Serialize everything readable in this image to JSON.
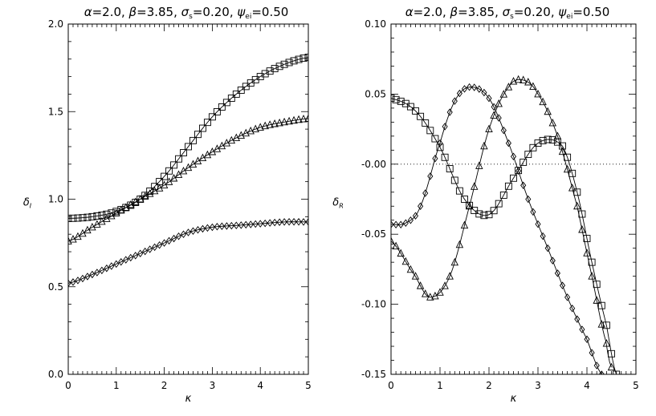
{
  "chart_data": [
    {
      "type": "line",
      "title_parts": [
        {
          "sym": "α",
          "sub": "",
          "rest": "=2.0,  "
        },
        {
          "sym": "β",
          "sub": "",
          "rest": "=3.85,  "
        },
        {
          "sym": "σ",
          "sub": "s",
          "rest": "=0.20,  "
        },
        {
          "sym": "ψ",
          "sub": "ei",
          "rest": "=0.50"
        }
      ],
      "xlabel": "κ",
      "ylabel": "δ",
      "ylabel_sub": "I",
      "xlim": [
        0,
        5
      ],
      "ylim": [
        0,
        2
      ],
      "xticks": [
        0,
        1,
        2,
        3,
        4,
        5
      ],
      "xtick_labels": [
        "0",
        "1",
        "2",
        "3",
        "4",
        "5"
      ],
      "yticks": [
        0,
        0.5,
        1,
        1.5,
        2
      ],
      "ytick_labels": [
        "0.0",
        "0.5",
        "1.0",
        "1.5",
        "2.0"
      ],
      "grid": false,
      "series": [
        {
          "marker": "square",
          "x": [
            0,
            0.5,
            1,
            1.5,
            2,
            2.5,
            3,
            3.5,
            4,
            4.5,
            5
          ],
          "y": [
            0.89,
            0.9,
            0.93,
            1.0,
            1.13,
            1.3,
            1.47,
            1.6,
            1.7,
            1.77,
            1.81
          ]
        },
        {
          "marker": "triangle",
          "x": [
            0,
            0.5,
            1,
            1.5,
            2,
            2.5,
            3,
            3.5,
            4,
            4.5,
            5
          ],
          "y": [
            0.76,
            0.84,
            0.92,
            1.0,
            1.08,
            1.18,
            1.27,
            1.35,
            1.41,
            1.44,
            1.46
          ]
        },
        {
          "marker": "diamond",
          "x": [
            0,
            0.5,
            1,
            1.5,
            2,
            2.5,
            3,
            3.5,
            4,
            4.5,
            5
          ],
          "y": [
            0.52,
            0.57,
            0.63,
            0.69,
            0.75,
            0.81,
            0.84,
            0.85,
            0.86,
            0.87,
            0.87
          ]
        }
      ]
    },
    {
      "type": "line",
      "title_parts": [
        {
          "sym": "α",
          "sub": "",
          "rest": "=2.0,  "
        },
        {
          "sym": "β",
          "sub": "",
          "rest": "=3.85,  "
        },
        {
          "sym": "σ",
          "sub": "s",
          "rest": "=0.20,  "
        },
        {
          "sym": "ψ",
          "sub": "ei",
          "rest": "=0.50"
        }
      ],
      "xlabel": "κ",
      "ylabel": "δ",
      "ylabel_sub": "R",
      "xlim": [
        0,
        5
      ],
      "ylim": [
        -0.15,
        0.1
      ],
      "xticks": [
        0,
        1,
        2,
        3,
        4,
        5
      ],
      "xtick_labels": [
        "0",
        "1",
        "2",
        "3",
        "4",
        "5"
      ],
      "yticks": [
        -0.15,
        -0.1,
        -0.05,
        0,
        0.05,
        0.1
      ],
      "ytick_labels": [
        "-0.15",
        "-0.10",
        "-0.05",
        "-0.00",
        "0.05",
        "0.10"
      ],
      "reference_line": {
        "y": 0,
        "style": "dotted"
      },
      "grid": false,
      "series": [
        {
          "marker": "square",
          "x": [
            0,
            0.5,
            1,
            1.5,
            2,
            2.5,
            3,
            3.5,
            3.8,
            4.1,
            4.4,
            4.6
          ],
          "y": [
            0.047,
            0.038,
            0.012,
            -0.025,
            -0.036,
            -0.01,
            0.015,
            0.013,
            -0.02,
            -0.07,
            -0.115,
            -0.15
          ]
        },
        {
          "marker": "triangle",
          "x": [
            0,
            0.5,
            0.8,
            1.2,
            1.6,
            2.0,
            2.4,
            2.7,
            3.0,
            3.4,
            3.8,
            4.1,
            4.4,
            4.5
          ],
          "y": [
            -0.055,
            -0.08,
            -0.095,
            -0.08,
            -0.03,
            0.025,
            0.055,
            0.06,
            0.05,
            0.02,
            -0.03,
            -0.08,
            -0.128,
            -0.145
          ]
        },
        {
          "marker": "diamond",
          "x": [
            0,
            0.3,
            0.6,
            1.0,
            1.3,
            1.6,
            2.0,
            2.4,
            2.8,
            3.2,
            3.6,
            4.0,
            4.3
          ],
          "y": [
            -0.043,
            -0.042,
            -0.03,
            0.015,
            0.045,
            0.055,
            0.047,
            0.015,
            -0.025,
            -0.06,
            -0.095,
            -0.125,
            -0.15
          ]
        }
      ]
    }
  ]
}
